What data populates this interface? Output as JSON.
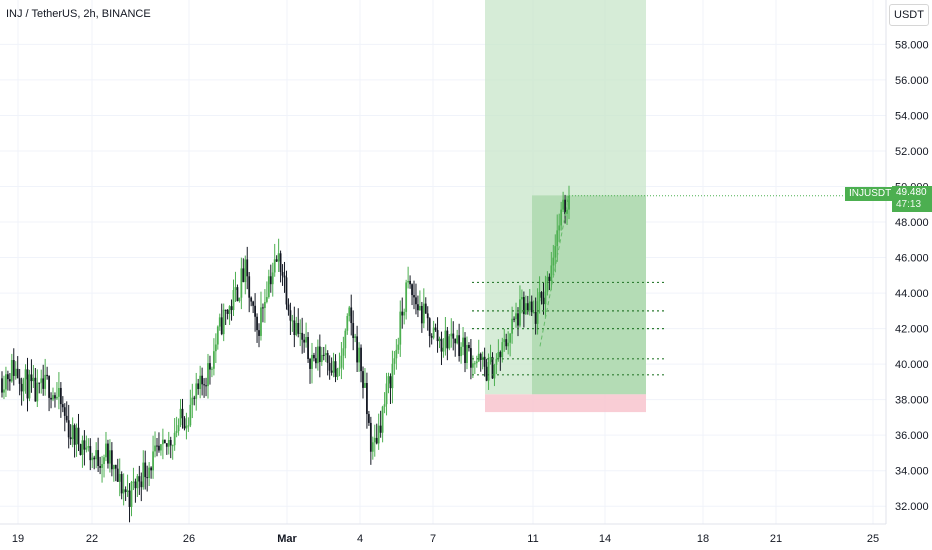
{
  "header": {
    "symbol_title": "INJ / TetherUS, 2h, BINANCE",
    "currency": "USDT"
  },
  "last_price": {
    "symbol": "INJUSDT",
    "price": "49.480",
    "countdown": "47:13"
  },
  "colors": {
    "up": "#4caf50",
    "down": "#131722",
    "profit_zone": "#c8e6c9",
    "loss_zone": "#f8c8d0",
    "dotted": "#2e7d32"
  },
  "chart_data": {
    "type": "candlestick",
    "title": "INJ / TetherUS, 2h, BINANCE",
    "xlabel": "",
    "ylabel": "",
    "x_ticks": [
      "19",
      "22",
      "26",
      "Mar",
      "4",
      "7",
      "11",
      "14",
      "18",
      "21",
      "25"
    ],
    "y_ticks": [
      "32.000",
      "34.000",
      "36.000",
      "38.000",
      "40.000",
      "42.000",
      "44.000",
      "46.000",
      "48.000",
      "50.000",
      "52.000",
      "54.000",
      "56.000",
      "58.000"
    ],
    "ylim": [
      31.0,
      60.5
    ],
    "grid": true,
    "price_path": [
      [
        "19",
        39.2
      ],
      [
        "19",
        39.8
      ],
      [
        "20",
        39.0
      ],
      [
        "20",
        38.2
      ],
      [
        "21",
        38.9
      ],
      [
        "21",
        37.8
      ],
      [
        "22",
        36.0
      ],
      [
        "22",
        35.6
      ],
      [
        "23",
        34.6
      ],
      [
        "23",
        35.0
      ],
      [
        "24",
        33.4
      ],
      [
        "24",
        32.6
      ],
      [
        "25",
        33.8
      ],
      [
        "25",
        34.6
      ],
      [
        "26",
        35.0
      ],
      [
        "26",
        36.4
      ],
      [
        "27",
        37.2
      ],
      [
        "27",
        38.4
      ],
      [
        "28",
        40.0
      ],
      [
        "28",
        42.4
      ],
      [
        "28",
        43.6
      ],
      [
        "29",
        45.2
      ],
      [
        "Mar 1",
        41.6
      ],
      [
        "Mar 1",
        44.8
      ],
      [
        "Mar 2",
        46.0
      ],
      [
        "Mar 2",
        42.8
      ],
      [
        "Mar 3",
        41.0
      ],
      [
        "Mar 3",
        40.2
      ],
      [
        "Mar 4",
        40.8
      ],
      [
        "Mar 4",
        39.2
      ],
      [
        "Mar 5",
        42.6
      ],
      [
        "Mar 5",
        40.0
      ],
      [
        "Mar 6",
        35.0
      ],
      [
        "Mar 6",
        37.6
      ],
      [
        "Mar 7",
        40.6
      ],
      [
        "Mar 7",
        44.4
      ],
      [
        "Mar 8",
        43.2
      ],
      [
        "Mar 8",
        42.0
      ],
      [
        "Mar 9",
        41.2
      ],
      [
        "Mar 9",
        41.6
      ],
      [
        "Mar 10",
        40.8
      ],
      [
        "Mar 10",
        40.2
      ],
      [
        "Mar 11",
        39.6
      ],
      [
        "Mar 11",
        40.4
      ],
      [
        "Mar 11",
        42.0
      ],
      [
        "Mar 12",
        43.2
      ],
      [
        "Mar 12",
        42.6
      ],
      [
        "Mar 12",
        44.2
      ],
      [
        "Mar 12",
        47.6
      ],
      [
        "Mar 13",
        49.48
      ]
    ],
    "position": {
      "entry": 38.3,
      "stop": 37.3,
      "target": 60.5,
      "filled_top": 49.5
    },
    "dotted_levels": [
      44.6,
      43.0,
      42.0,
      40.3,
      39.4
    ]
  }
}
